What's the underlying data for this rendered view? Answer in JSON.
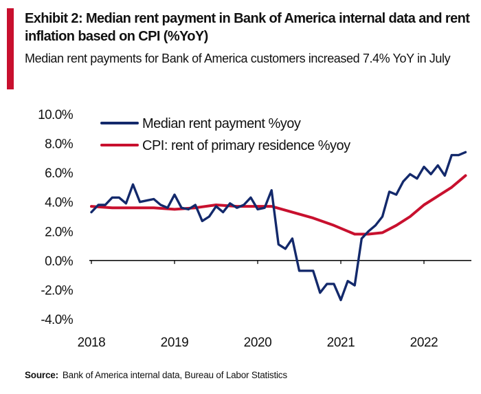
{
  "header": {
    "title": "Exhibit 2: Median rent payment in Bank of America internal data and rent inflation based on CPI (%YoY)",
    "subtitle": "Median rent payments for Bank of America customers increased 7.4% YoY in July"
  },
  "footer": {
    "source_label": "Source:",
    "source_text": "Bank of America internal data, Bureau of Labor Statistics"
  },
  "colors": {
    "accent": "#c8102e",
    "series_rent": "#13296b",
    "series_cpi": "#c8102e"
  },
  "chart_data": {
    "type": "line",
    "ylim": [
      -4,
      10
    ],
    "y_ticks": [
      10,
      8,
      6,
      4,
      2,
      0,
      -2,
      -4
    ],
    "y_tick_labels": [
      "10.0%",
      "8.0%",
      "6.0%",
      "4.0%",
      "2.0%",
      "0.0%",
      "-2.0%",
      "-4.0%"
    ],
    "x_range": [
      "2018-01",
      "2022-07"
    ],
    "x_tick_labels": [
      "2018",
      "2019",
      "2020",
      "2021",
      "2022"
    ],
    "legend_position": "top-left",
    "grid": false,
    "series": [
      {
        "name": "Median rent payment %yoy",
        "x": [
          "2018-01",
          "2018-02",
          "2018-03",
          "2018-04",
          "2018-05",
          "2018-06",
          "2018-07",
          "2018-08",
          "2018-09",
          "2018-10",
          "2018-11",
          "2018-12",
          "2019-01",
          "2019-02",
          "2019-03",
          "2019-04",
          "2019-05",
          "2019-06",
          "2019-07",
          "2019-08",
          "2019-09",
          "2019-10",
          "2019-11",
          "2019-12",
          "2020-01",
          "2020-02",
          "2020-03",
          "2020-04",
          "2020-05",
          "2020-06",
          "2020-07",
          "2020-08",
          "2020-09",
          "2020-10",
          "2020-11",
          "2020-12",
          "2021-01",
          "2021-02",
          "2021-03",
          "2021-04",
          "2021-05",
          "2021-06",
          "2021-07",
          "2021-08",
          "2021-09",
          "2021-10",
          "2021-11",
          "2021-12",
          "2022-01",
          "2022-02",
          "2022-03",
          "2022-04",
          "2022-05",
          "2022-06",
          "2022-07"
        ],
        "values": [
          3.3,
          3.8,
          3.8,
          4.3,
          4.3,
          3.9,
          5.2,
          4.0,
          4.1,
          4.2,
          3.8,
          3.6,
          4.5,
          3.6,
          3.5,
          3.8,
          2.7,
          3.0,
          3.7,
          3.3,
          3.9,
          3.6,
          3.8,
          4.3,
          3.5,
          3.6,
          4.8,
          1.1,
          0.8,
          1.5,
          -0.7,
          -0.7,
          -0.7,
          -2.2,
          -1.6,
          -1.6,
          -2.7,
          -1.4,
          -1.7,
          1.5,
          2.0,
          2.4,
          3.0,
          4.7,
          4.5,
          5.4,
          5.9,
          5.6,
          6.4,
          5.9,
          6.5,
          5.8,
          7.2,
          7.2,
          7.4
        ]
      },
      {
        "name": "CPI: rent of primary residence %yoy",
        "x": [
          "2018-01",
          "2018-04",
          "2018-07",
          "2018-10",
          "2019-01",
          "2019-04",
          "2019-07",
          "2019-10",
          "2020-01",
          "2020-03",
          "2020-06",
          "2020-09",
          "2020-12",
          "2021-03",
          "2021-05",
          "2021-07",
          "2021-09",
          "2021-11",
          "2022-01",
          "2022-03",
          "2022-05",
          "2022-07"
        ],
        "values": [
          3.7,
          3.6,
          3.6,
          3.6,
          3.5,
          3.6,
          3.8,
          3.7,
          3.7,
          3.7,
          3.3,
          2.9,
          2.4,
          1.8,
          1.8,
          1.9,
          2.4,
          3.0,
          3.8,
          4.4,
          5.0,
          5.8
        ]
      }
    ]
  }
}
